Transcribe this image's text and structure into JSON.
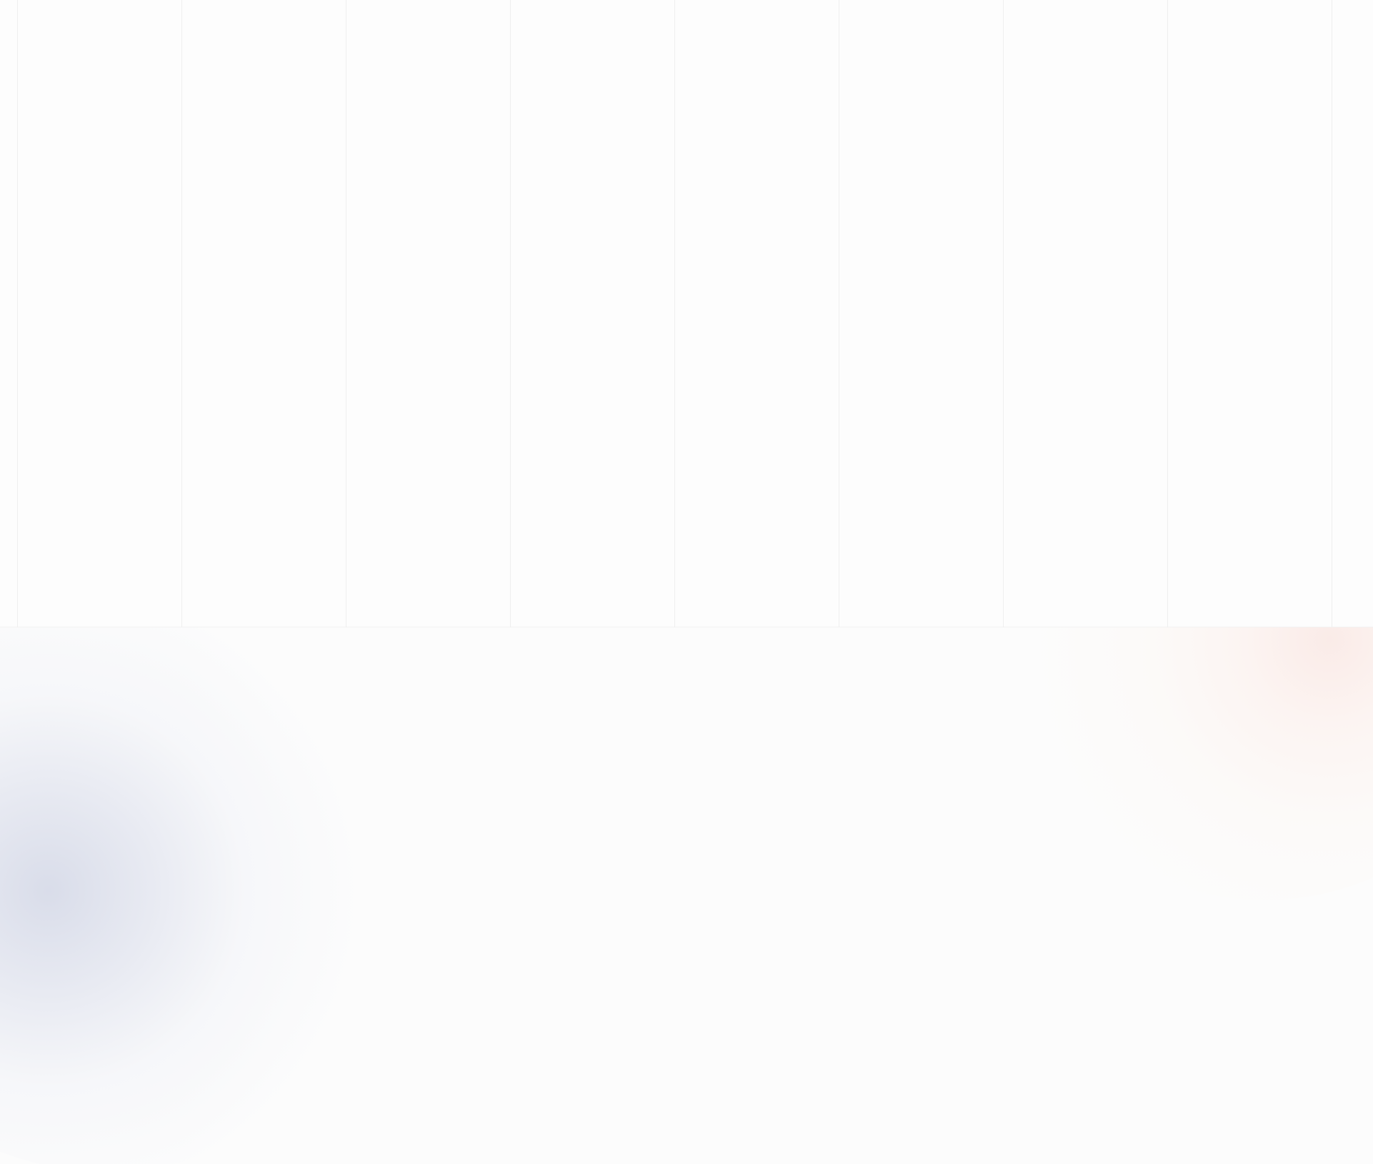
{
  "theme": {
    "background": "#fcfcfc",
    "panel_background": "#fdfdfd",
    "grid_line_color": "#efefef",
    "left_glow_color": "#d6dae8",
    "right_glow_color": "#fae8e4"
  }
}
